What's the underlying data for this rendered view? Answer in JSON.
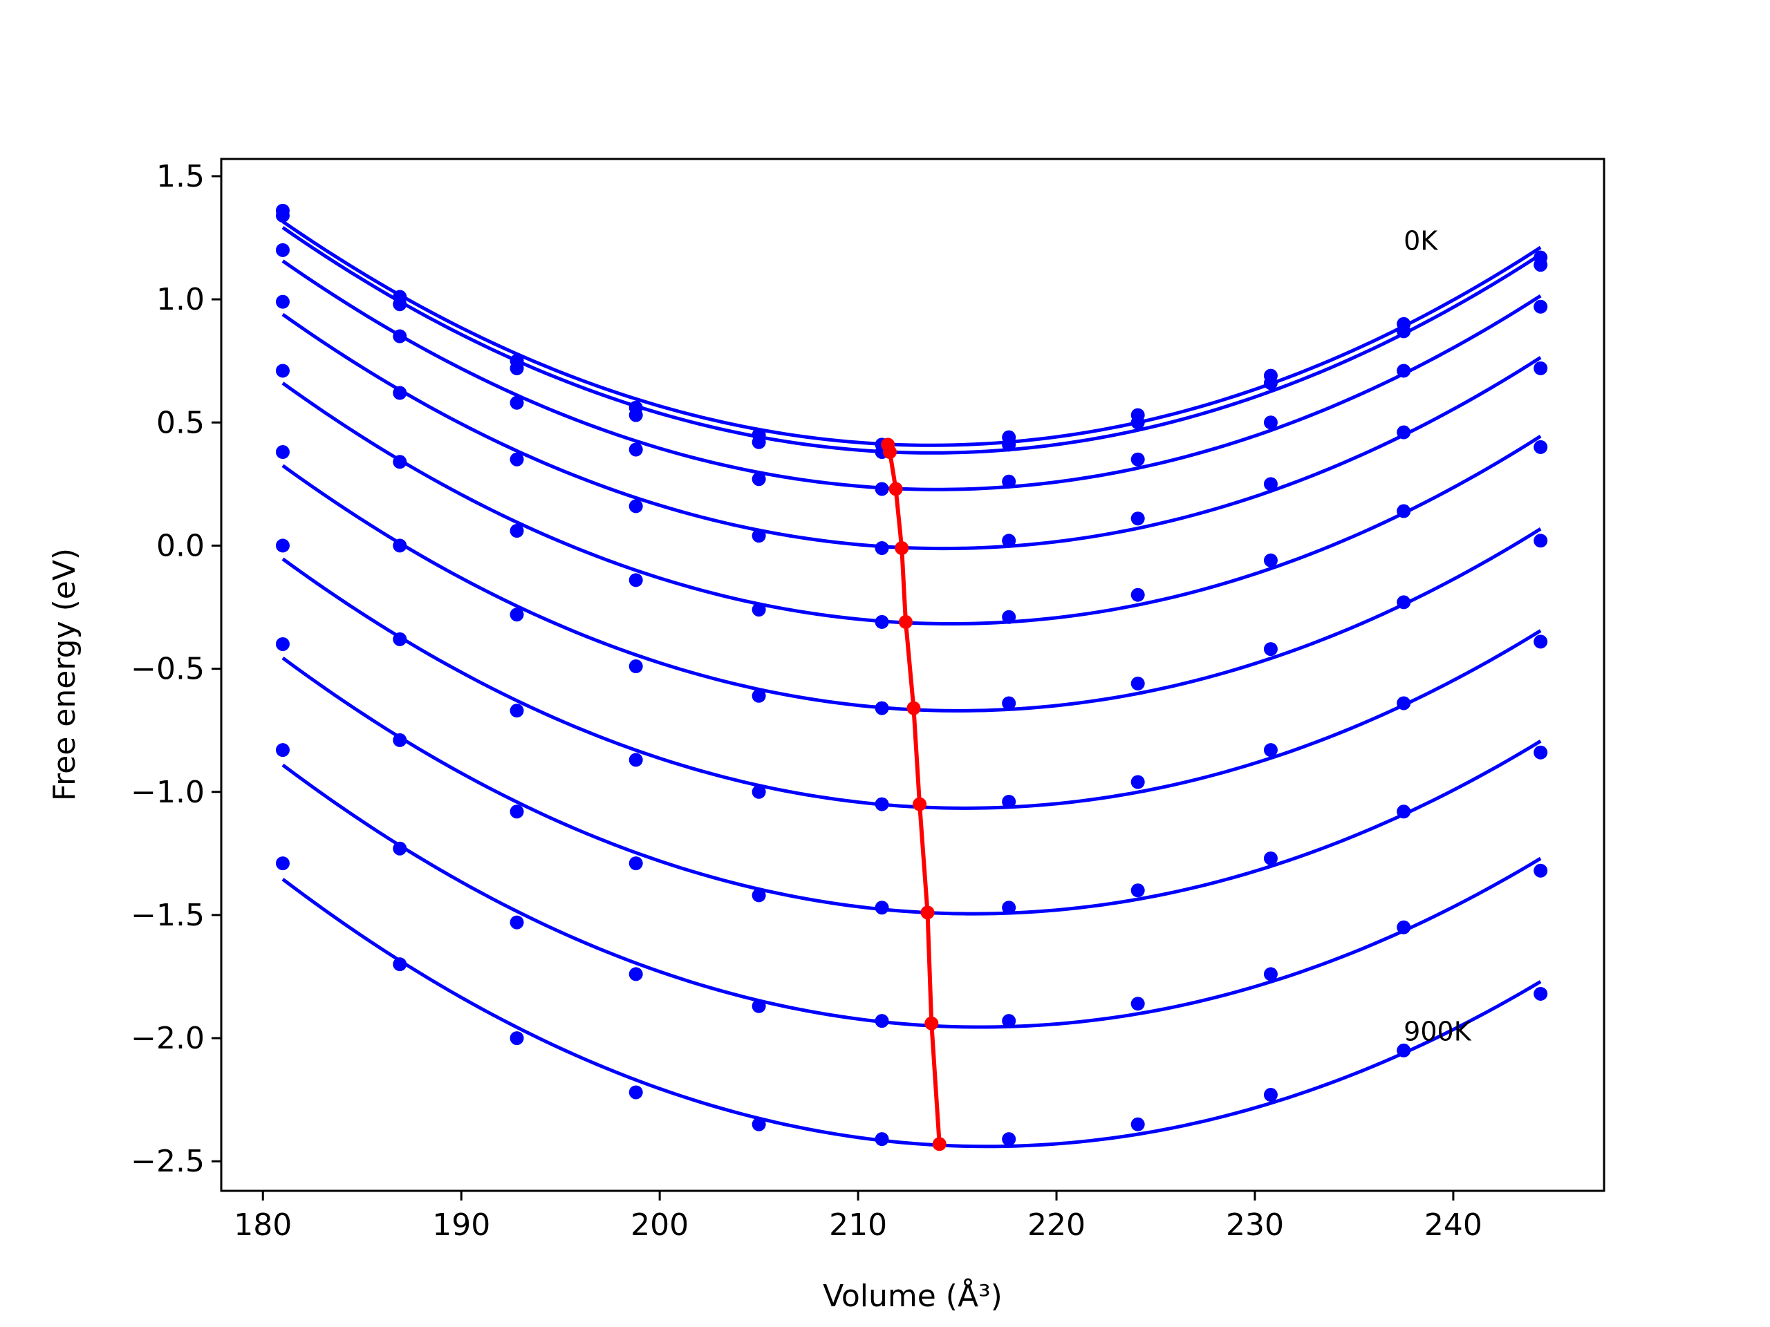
{
  "chart_data": {
    "type": "line",
    "xlabel": "Volume (Å³)",
    "ylabel": "Free energy (eV)",
    "xlim": [
      177.9,
      247.6
    ],
    "ylim": [
      -2.62,
      1.57
    ],
    "xticks": [
      180,
      190,
      200,
      210,
      220,
      230,
      240
    ],
    "yticks": [
      -2.5,
      -2.0,
      -1.5,
      -1.0,
      -0.5,
      0.0,
      0.5,
      1.0,
      1.5
    ],
    "grid": false,
    "legend": "none",
    "annotations": [
      {
        "text": "0K",
        "x": 237.5,
        "y": 1.24
      },
      {
        "text": "900K",
        "x": 237.5,
        "y": -1.97
      }
    ],
    "x": [
      181.0,
      186.9,
      192.8,
      198.8,
      205.0,
      211.2,
      217.6,
      224.1,
      230.8,
      237.5,
      244.4
    ],
    "series": [
      {
        "values": [
          1.36,
          1.01,
          0.75,
          0.56,
          0.45,
          0.41,
          0.44,
          0.53,
          0.69,
          0.9,
          1.17
        ]
      },
      {
        "values": [
          1.34,
          0.98,
          0.72,
          0.53,
          0.42,
          0.38,
          0.41,
          0.5,
          0.66,
          0.87,
          1.14
        ]
      },
      {
        "values": [
          1.2,
          0.85,
          0.58,
          0.39,
          0.27,
          0.23,
          0.26,
          0.35,
          0.5,
          0.71,
          0.97
        ]
      },
      {
        "values": [
          0.99,
          0.62,
          0.35,
          0.16,
          0.04,
          -0.01,
          0.02,
          0.11,
          0.25,
          0.46,
          0.72
        ]
      },
      {
        "values": [
          0.71,
          0.34,
          0.06,
          -0.14,
          -0.26,
          -0.31,
          -0.29,
          -0.2,
          -0.06,
          0.14,
          0.4
        ]
      },
      {
        "values": [
          0.38,
          -0.0,
          -0.28,
          -0.49,
          -0.61,
          -0.66,
          -0.64,
          -0.56,
          -0.42,
          -0.23,
          0.02
        ]
      },
      {
        "values": [
          0.0,
          -0.38,
          -0.67,
          -0.87,
          -1.0,
          -1.05,
          -1.04,
          -0.96,
          -0.83,
          -0.64,
          -0.39
        ]
      },
      {
        "values": [
          -0.4,
          -0.79,
          -1.08,
          -1.29,
          -1.42,
          -1.47,
          -1.47,
          -1.4,
          -1.27,
          -1.08,
          -0.84
        ]
      },
      {
        "values": [
          -0.83,
          -1.23,
          -1.53,
          -1.74,
          -1.87,
          -1.93,
          -1.93,
          -1.86,
          -1.74,
          -1.55,
          -1.32
        ]
      },
      {
        "values": [
          -1.29,
          -1.7,
          -2.0,
          -2.22,
          -2.35,
          -2.41,
          -2.41,
          -2.35,
          -2.23,
          -2.05,
          -1.82
        ]
      }
    ],
    "minima": {
      "x": [
        211.5,
        211.6,
        211.9,
        212.2,
        212.4,
        212.8,
        213.1,
        213.5,
        213.7,
        214.1
      ],
      "y": [
        0.41,
        0.38,
        0.23,
        -0.01,
        -0.31,
        -0.66,
        -1.05,
        -1.49,
        -1.94,
        -2.43
      ]
    },
    "colors": {
      "series": "#0000ff",
      "minima": "#ff0000"
    }
  }
}
